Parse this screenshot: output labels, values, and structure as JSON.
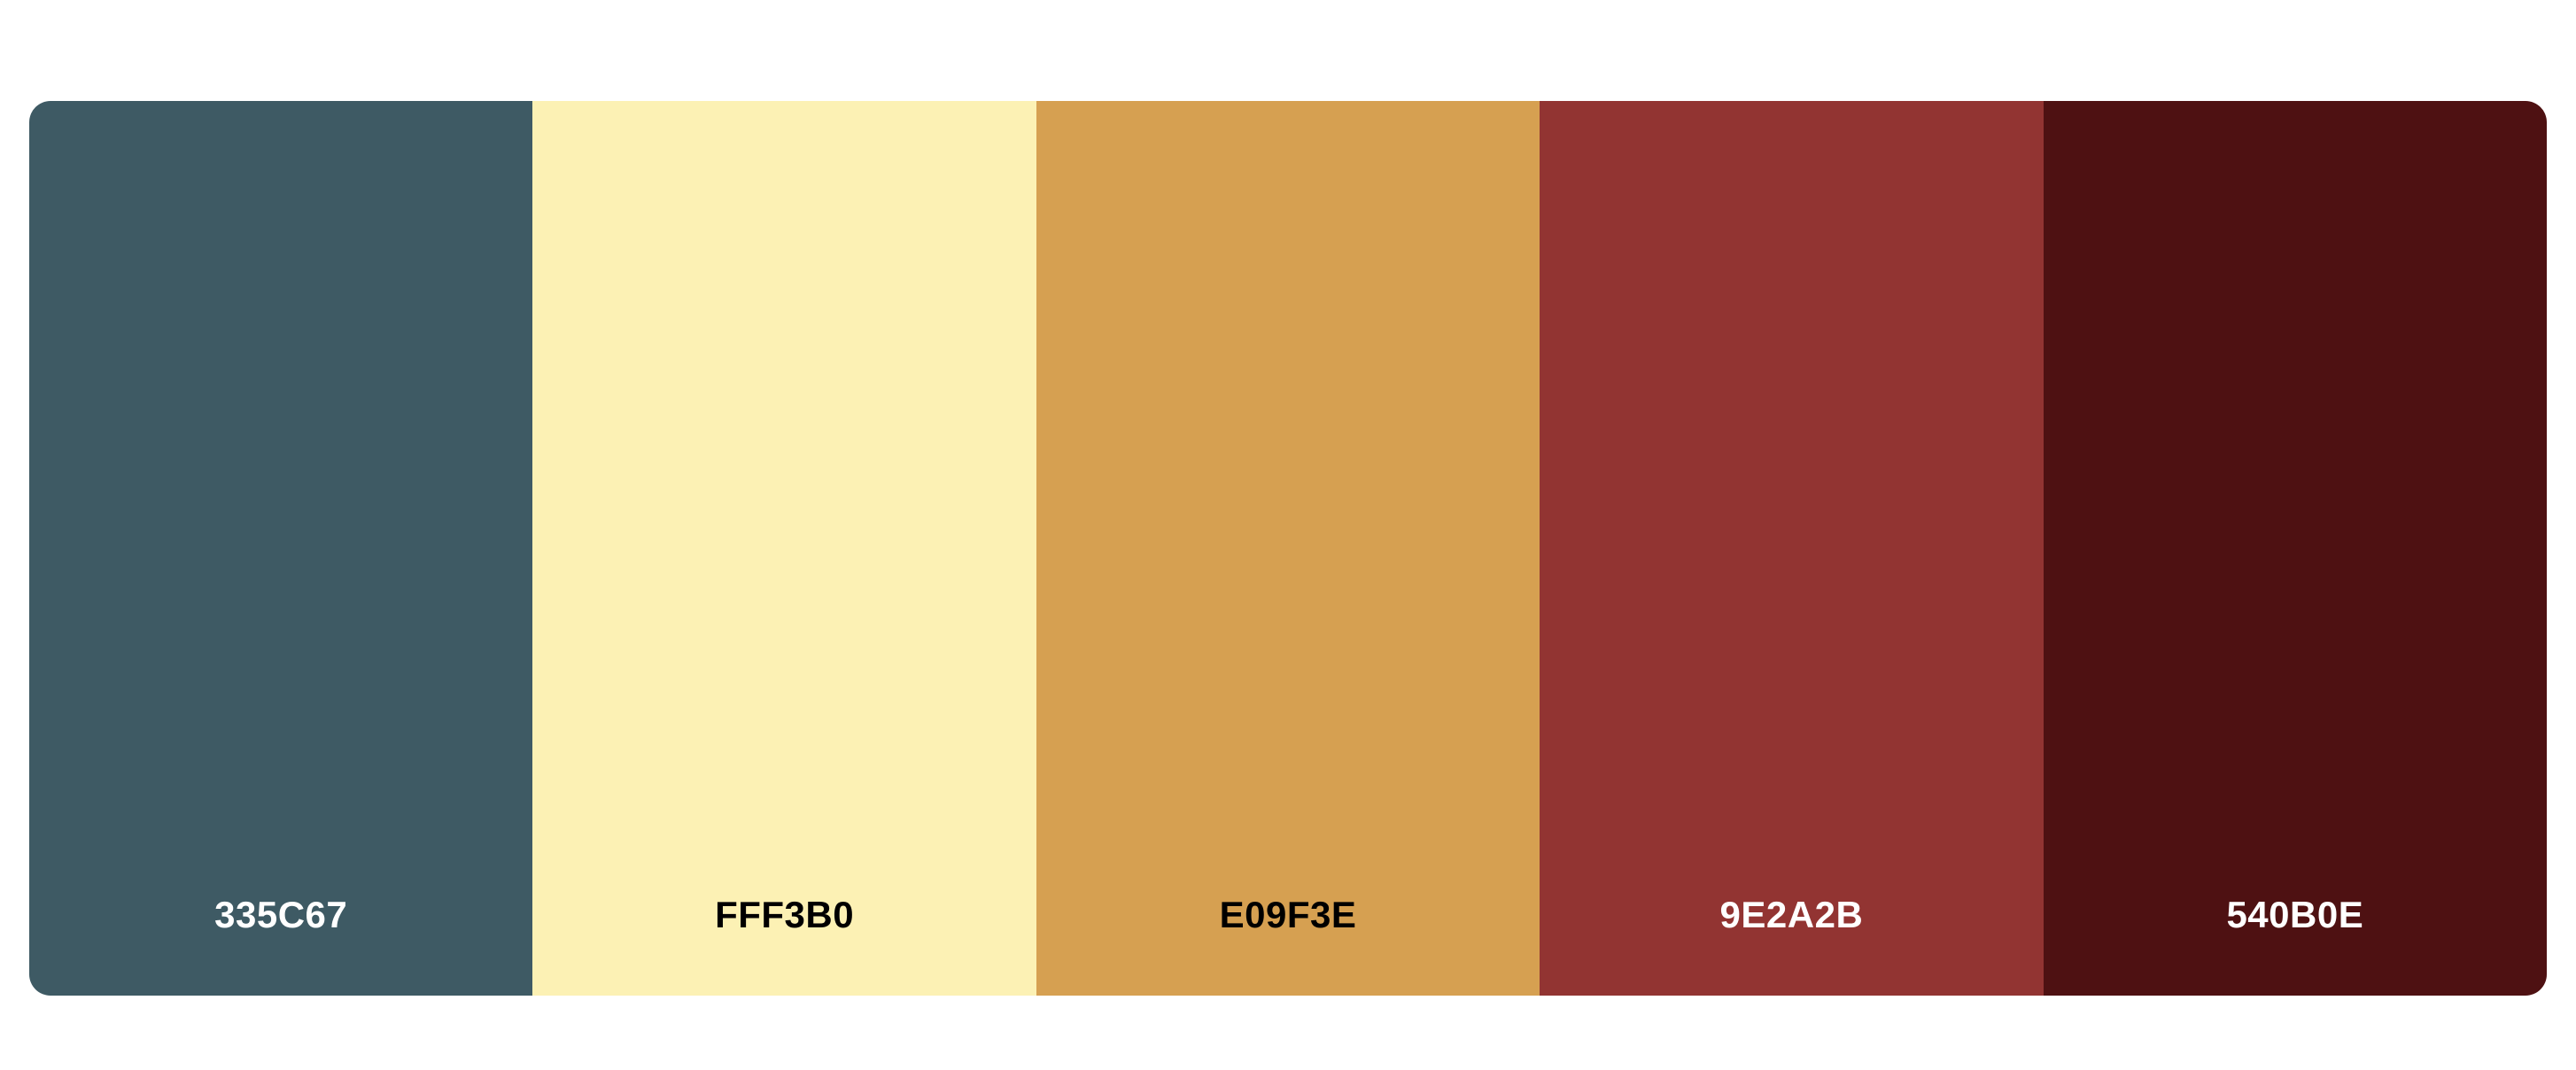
{
  "palette": {
    "colors": [
      {
        "hex": "335C67",
        "background": "#3E5A64",
        "text_color": "#ffffff"
      },
      {
        "hex": "FFF3B0",
        "background": "#FCF1B4",
        "text_color": "#000000"
      },
      {
        "hex": "E09F3E",
        "background": "#D6A051",
        "text_color": "#000000"
      },
      {
        "hex": "9E2A2B",
        "background": "#923432",
        "text_color": "#ffffff"
      },
      {
        "hex": "540B0E",
        "background": "#4E1112",
        "text_color": "#ffffff"
      }
    ]
  }
}
